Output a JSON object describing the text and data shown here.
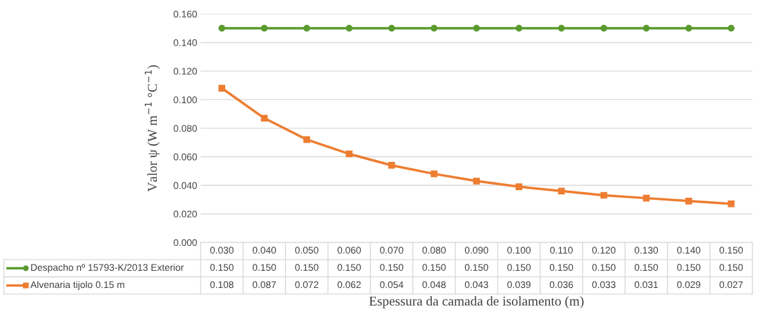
{
  "chart_data": {
    "type": "line",
    "categories": [
      "0.030",
      "0.040",
      "0.050",
      "0.060",
      "0.070",
      "0.080",
      "0.090",
      "0.100",
      "0.110",
      "0.120",
      "0.130",
      "0.140",
      "0.150"
    ],
    "series": [
      {
        "name": "Despacho nº 15793-K/2013 Exterior",
        "color": "#5a9a2e",
        "marker": "circle",
        "values": [
          0.15,
          0.15,
          0.15,
          0.15,
          0.15,
          0.15,
          0.15,
          0.15,
          0.15,
          0.15,
          0.15,
          0.15,
          0.15
        ],
        "value_labels": [
          "0.150",
          "0.150",
          "0.150",
          "0.150",
          "0.150",
          "0.150",
          "0.150",
          "0.150",
          "0.150",
          "0.150",
          "0.150",
          "0.150",
          "0.150"
        ]
      },
      {
        "name": "Alvenaria tijolo 0.15 m",
        "color": "#ed7d31",
        "marker": "square",
        "values": [
          0.108,
          0.087,
          0.072,
          0.062,
          0.054,
          0.048,
          0.043,
          0.039,
          0.036,
          0.033,
          0.031,
          0.029,
          0.027
        ],
        "value_labels": [
          "0.108",
          "0.087",
          "0.072",
          "0.062",
          "0.054",
          "0.048",
          "0.043",
          "0.039",
          "0.036",
          "0.033",
          "0.031",
          "0.029",
          "0.027"
        ]
      }
    ],
    "ylabel": "Valor ψ (W m$^{−1}$ °C$^{−1}$)",
    "xlabel": "Espessura da camada de isolamento (m)",
    "ylim": [
      0,
      0.16
    ],
    "yticks": [
      {
        "value": 0,
        "label": "0.000"
      },
      {
        "value": 0.02,
        "label": "0.020"
      },
      {
        "value": 0.04,
        "label": "0.040"
      },
      {
        "value": 0.06,
        "label": "0.060"
      },
      {
        "value": 0.08,
        "label": "0.080"
      },
      {
        "value": 0.1,
        "label": "0.100"
      },
      {
        "value": 0.12,
        "label": "0.120"
      },
      {
        "value": 0.14,
        "label": "0.140"
      },
      {
        "value": 0.16,
        "label": "0.160"
      }
    ],
    "grid": "y",
    "legend": "bottom",
    "line_style": "solid"
  }
}
